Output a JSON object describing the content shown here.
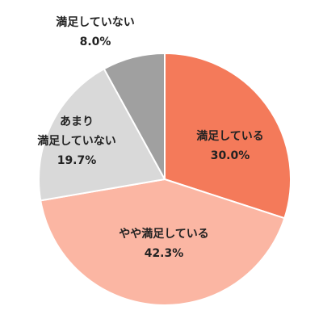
{
  "chart_data": {
    "type": "pie",
    "categories": [
      "満足している",
      "やや満足している",
      "あまり\n満足していない",
      "満足していない"
    ],
    "values": [
      30.0,
      42.3,
      19.7,
      8.0
    ],
    "value_labels": [
      "30.0%",
      "42.3%",
      "19.7%",
      "8.0%"
    ],
    "colors": [
      "#f47a5a",
      "#fbb6a3",
      "#d9d9d9",
      "#a0a0a0"
    ]
  }
}
